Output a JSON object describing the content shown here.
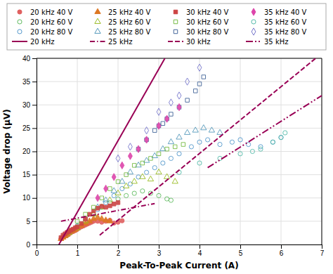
{
  "chart_data": {
    "type": "scatter",
    "xlabel": "Peak-To-Peak Current (A)",
    "ylabel": "Voltage drop (μV)",
    "xlim": [
      0,
      7
    ],
    "ylim": [
      0,
      40
    ],
    "xticks": [
      0,
      1,
      2,
      3,
      4,
      5,
      6,
      7
    ],
    "yticks": [
      0,
      5,
      10,
      15,
      20,
      25,
      30,
      35,
      40
    ],
    "grid": true,
    "legend": "top",
    "series": [
      {
        "name": "20 kHz 40 V",
        "color": "#E06060",
        "marker": "filled-circle",
        "x": [
          0.6,
          0.65,
          0.7,
          0.75,
          0.8,
          0.85,
          0.9,
          0.95,
          1.0,
          1.05,
          1.1,
          1.15,
          1.2,
          1.25,
          1.3,
          1.35,
          1.4,
          1.5,
          1.6,
          1.7,
          1.8,
          1.9,
          2.0,
          2.1
        ],
        "values": [
          1.2,
          1.5,
          1.8,
          2.0,
          2.3,
          2.6,
          2.8,
          3.0,
          3.3,
          3.6,
          3.8,
          4.0,
          4.2,
          4.4,
          4.6,
          4.8,
          5.0,
          5.0,
          4.8,
          5.0,
          5.2,
          4.6,
          4.8,
          5.1
        ]
      },
      {
        "name": "20 kHz 60 V",
        "color": "#60BB60",
        "marker": "open-circle",
        "x": [
          0.75,
          0.9,
          1.0,
          1.2,
          1.4,
          1.6,
          1.8,
          2.0,
          2.2,
          2.4,
          2.6,
          2.8,
          3.0,
          3.2,
          3.3
        ],
        "values": [
          2.0,
          3.0,
          3.8,
          5.0,
          6.5,
          8.0,
          9.0,
          9.8,
          10.5,
          11.0,
          11.5,
          11.0,
          10.5,
          9.8,
          9.5
        ]
      },
      {
        "name": "20 kHz 80 V",
        "color": "#5599CC",
        "marker": "open-circle",
        "x": [
          1.0,
          1.2,
          1.5,
          1.7,
          1.9,
          2.1,
          2.3,
          2.5,
          2.7,
          2.9,
          3.1,
          3.3,
          3.5,
          3.8,
          4.0,
          4.2,
          4.5,
          4.8,
          5.0,
          5.2,
          5.5,
          5.8,
          6.0
        ],
        "values": [
          4.0,
          5.5,
          7.5,
          9.0,
          10.5,
          12.0,
          13.0,
          14.5,
          15.5,
          16.5,
          17.5,
          18.5,
          19.5,
          21.0,
          22.0,
          22.5,
          21.5,
          22.0,
          22.5,
          21.5,
          21.0,
          22.0,
          23.0
        ]
      },
      {
        "name": "25 kHz 40 V",
        "color": "#DD7722",
        "marker": "filled-triangle",
        "x": [
          0.6,
          0.65,
          0.7,
          0.75,
          0.8,
          0.85,
          0.9,
          0.95,
          1.0,
          1.1,
          1.2,
          1.3,
          1.4,
          1.5,
          1.6,
          1.7,
          1.8
        ],
        "values": [
          1.2,
          1.5,
          1.8,
          2.1,
          2.5,
          2.8,
          3.0,
          3.2,
          3.5,
          4.0,
          4.5,
          5.0,
          5.5,
          5.8,
          5.5,
          5.2,
          5.0
        ]
      },
      {
        "name": "25 kHz 60 V",
        "color": "#99BB22",
        "marker": "open-triangle",
        "x": [
          0.8,
          1.0,
          1.2,
          1.4,
          1.6,
          1.8,
          2.0,
          2.2,
          2.4,
          2.6,
          2.8,
          3.0,
          3.2,
          3.4
        ],
        "values": [
          2.5,
          3.5,
          5.0,
          6.5,
          8.0,
          9.5,
          11.0,
          12.5,
          13.5,
          14.5,
          14.0,
          15.5,
          14.5,
          13.5
        ]
      },
      {
        "name": "25 kHz 80 V",
        "color": "#5599BB",
        "marker": "open-triangle",
        "x": [
          1.5,
          1.7,
          1.9,
          2.1,
          2.3,
          2.5,
          2.7,
          2.9,
          3.1,
          3.3,
          3.5,
          3.7,
          3.9,
          4.1,
          4.3,
          4.5
        ],
        "values": [
          8.0,
          9.5,
          11.5,
          13.5,
          15.5,
          17.0,
          18.0,
          19.0,
          20.5,
          22.0,
          23.0,
          24.0,
          24.5,
          25.0,
          24.5,
          24.0
        ]
      },
      {
        "name": "30 kHz 40 V",
        "color": "#CC4444",
        "marker": "filled-square",
        "x": [
          0.6,
          0.65,
          0.7,
          0.75,
          0.8,
          0.85,
          0.9,
          0.95,
          1.0,
          1.1,
          1.2,
          1.3,
          1.4,
          1.5,
          1.6,
          1.7,
          1.8,
          1.9,
          2.0
        ],
        "values": [
          1.5,
          2.0,
          2.3,
          2.6,
          2.8,
          3.1,
          3.3,
          3.6,
          3.8,
          4.5,
          5.5,
          6.5,
          7.2,
          7.8,
          8.2,
          8.0,
          8.3,
          8.7,
          9.0
        ]
      },
      {
        "name": "30 kHz 60 V",
        "color": "#77BB44",
        "marker": "open-square",
        "x": [
          1.0,
          1.2,
          1.4,
          1.6,
          1.8,
          2.0,
          2.2,
          2.4,
          2.6,
          2.8,
          3.0,
          3.2,
          3.4,
          3.6
        ],
        "values": [
          5.0,
          6.5,
          8.0,
          10.0,
          12.0,
          13.5,
          15.0,
          17.0,
          17.5,
          18.5,
          19.5,
          20.5,
          21.0,
          21.5
        ]
      },
      {
        "name": "30 kHz 80 V",
        "color": "#446699",
        "marker": "open-square",
        "x": [
          2.5,
          2.7,
          2.9,
          3.0,
          3.1,
          3.2,
          3.3,
          3.5,
          3.7,
          3.9,
          4.0,
          4.1
        ],
        "values": [
          20.5,
          22.5,
          24.5,
          25.5,
          26.0,
          27.0,
          28.0,
          29.5,
          31.0,
          33.0,
          34.5,
          36.0
        ]
      },
      {
        "name": "35 kHz 40 V",
        "color": "#DD44AA",
        "marker": "filled-diamond",
        "x": [
          1.5,
          1.7,
          1.9,
          2.1,
          2.3,
          2.5,
          2.7,
          3.0,
          3.2,
          3.5
        ],
        "values": [
          10.0,
          12.0,
          14.5,
          17.0,
          19.0,
          20.5,
          22.5,
          25.5,
          27.0,
          29.5
        ]
      },
      {
        "name": "35 kHz 60 V",
        "color": "#55BBAA",
        "marker": "open-circle",
        "x": [
          3.5,
          4.0,
          4.5,
          5.0,
          5.3,
          5.5,
          5.8,
          6.0,
          6.1
        ],
        "values": [
          15.5,
          17.5,
          18.5,
          19.5,
          20.0,
          20.5,
          22.0,
          23.0,
          24.0
        ]
      },
      {
        "name": "35 kHz 80 V",
        "color": "#7777CC",
        "marker": "open-diamond",
        "x": [
          2.0,
          2.3,
          2.7,
          3.0,
          3.3,
          3.5,
          3.7,
          4.0
        ],
        "values": [
          18.5,
          21.0,
          24.5,
          28.5,
          30.5,
          32.0,
          35.0,
          38.0
        ]
      },
      {
        "name": "20 kHz",
        "type": "line",
        "color": "#990055",
        "line_style": "solid",
        "x": [
          0.55,
          3.15
        ],
        "values": [
          0.0,
          40.0
        ]
      },
      {
        "name": "25 kHz",
        "type": "line",
        "color": "#990055",
        "line_style": "dashdot",
        "x": [
          0.6,
          2.9
        ],
        "values": [
          5.0,
          8.8
        ]
      },
      {
        "name": "30 kHz",
        "type": "line",
        "color": "#990055",
        "line_style": "dashed",
        "x": [
          1.55,
          6.85
        ],
        "values": [
          2.0,
          40.0
        ]
      },
      {
        "name": "35 kHz",
        "type": "line",
        "color": "#990055",
        "line_style": "dashdotdot",
        "x": [
          4.2,
          7.0
        ],
        "values": [
          16.5,
          32.0
        ]
      }
    ]
  }
}
